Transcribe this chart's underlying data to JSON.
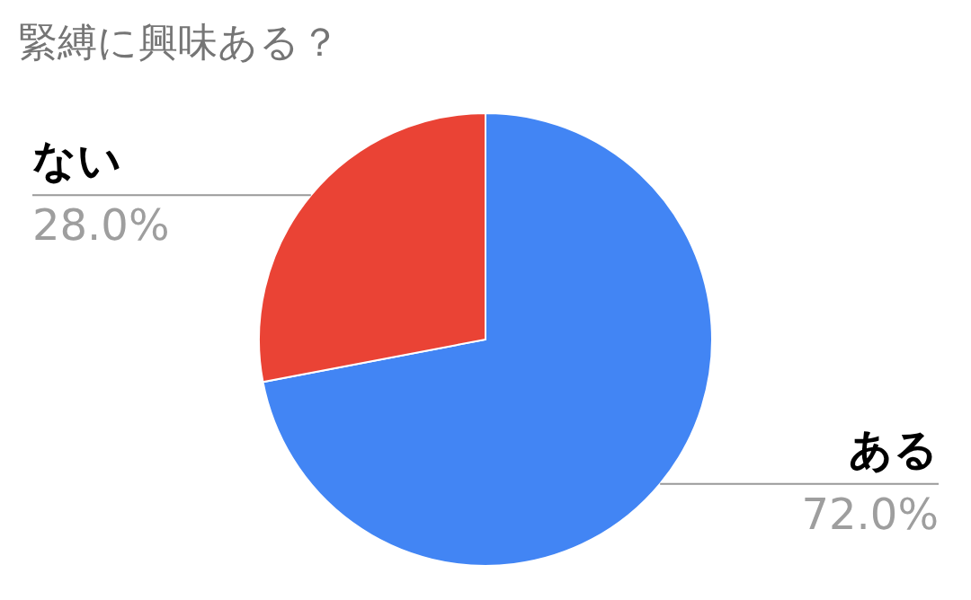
{
  "chart_data": {
    "type": "pie",
    "title": "緊縛に興味ある？",
    "categories": [
      "ある",
      "ない"
    ],
    "values": [
      72.0,
      28.0
    ],
    "colors": [
      "#4285f4",
      "#ea4335"
    ],
    "value_labels": [
      "72.0%",
      "28.0%"
    ]
  }
}
